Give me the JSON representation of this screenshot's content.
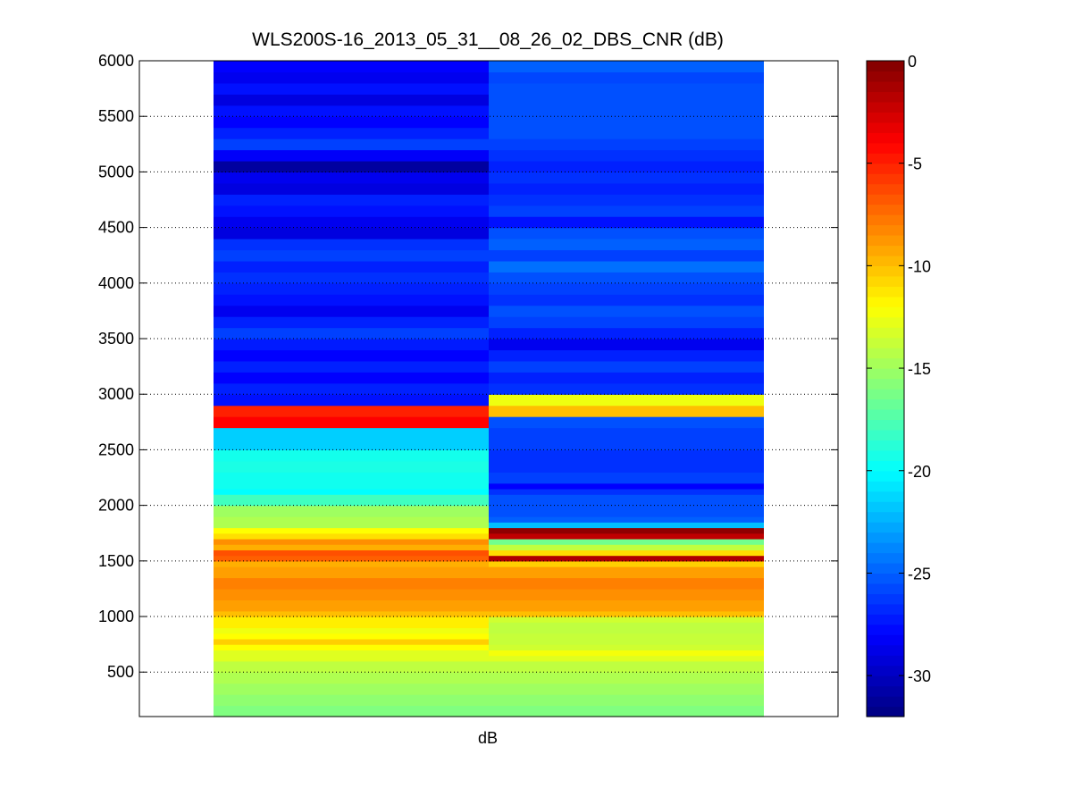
{
  "chart_data": {
    "type": "heatmap",
    "title": "WLS200S-16_2013_05_31__08_26_02_DBS_CNR (dB)",
    "xlabel": "dB",
    "ylabel": "",
    "ylim": [
      100,
      6000
    ],
    "yticks": [
      500,
      1000,
      1500,
      2000,
      2500,
      3000,
      3500,
      4000,
      4500,
      5000,
      5500,
      6000
    ],
    "grid": "y-dotted",
    "colormap": "jet",
    "colorbar": {
      "clim": [
        -32,
        0
      ],
      "ticks": [
        0,
        -5,
        -10,
        -15,
        -20,
        -25,
        -30
      ],
      "placement": "right"
    },
    "columns": [
      {
        "cells": [
          [
            100,
            200,
            -16
          ],
          [
            200,
            300,
            -15.5
          ],
          [
            300,
            400,
            -15
          ],
          [
            400,
            500,
            -14.5
          ],
          [
            500,
            600,
            -14
          ],
          [
            600,
            700,
            -13
          ],
          [
            700,
            750,
            -12
          ],
          [
            750,
            800,
            -10.5
          ],
          [
            800,
            850,
            -12
          ],
          [
            850,
            900,
            -12.5
          ],
          [
            900,
            1000,
            -11.5
          ],
          [
            1000,
            1050,
            -10
          ],
          [
            1050,
            1150,
            -9
          ],
          [
            1150,
            1250,
            -8.5
          ],
          [
            1250,
            1350,
            -8
          ],
          [
            1350,
            1450,
            -9
          ],
          [
            1450,
            1500,
            -9.5
          ],
          [
            1500,
            1550,
            -7
          ],
          [
            1550,
            1600,
            -6.5
          ],
          [
            1600,
            1650,
            -9.5
          ],
          [
            1650,
            1700,
            -8.5
          ],
          [
            1700,
            1750,
            -11
          ],
          [
            1750,
            1800,
            -12
          ],
          [
            1800,
            1900,
            -14.5
          ],
          [
            1900,
            2000,
            -15
          ],
          [
            2000,
            2100,
            -18
          ],
          [
            2100,
            2150,
            -20
          ],
          [
            2150,
            2200,
            -19.5
          ],
          [
            2200,
            2300,
            -19.5
          ],
          [
            2300,
            2400,
            -19.2
          ],
          [
            2400,
            2500,
            -19.4
          ],
          [
            2500,
            2700,
            -21.5
          ],
          [
            2700,
            2800,
            -4
          ],
          [
            2800,
            2900,
            -5
          ],
          [
            2900,
            3000,
            -27.5
          ],
          [
            3000,
            3100,
            -27
          ],
          [
            3100,
            3200,
            -28
          ],
          [
            3200,
            3300,
            -27
          ],
          [
            3300,
            3400,
            -28
          ],
          [
            3400,
            3500,
            -27.2
          ],
          [
            3500,
            3600,
            -26
          ],
          [
            3600,
            3700,
            -27
          ],
          [
            3700,
            3800,
            -28.5
          ],
          [
            3800,
            3900,
            -27.5
          ],
          [
            3900,
            4000,
            -27
          ],
          [
            4000,
            4100,
            -26.5
          ],
          [
            4100,
            4200,
            -27
          ],
          [
            4200,
            4300,
            -26
          ],
          [
            4300,
            4400,
            -26.5
          ],
          [
            4400,
            4500,
            -29
          ],
          [
            4500,
            4600,
            -28.5
          ],
          [
            4600,
            4700,
            -27.5
          ],
          [
            4700,
            4800,
            -27
          ],
          [
            4800,
            4900,
            -29
          ],
          [
            4900,
            5000,
            -28.5
          ],
          [
            5000,
            5100,
            -31
          ],
          [
            5100,
            5200,
            -28.2
          ],
          [
            5200,
            5300,
            -26
          ],
          [
            5300,
            5400,
            -27
          ],
          [
            5400,
            5500,
            -28
          ],
          [
            5500,
            5600,
            -27.5
          ],
          [
            5600,
            5700,
            -29
          ],
          [
            5700,
            5800,
            -27.5
          ],
          [
            5800,
            5900,
            -28.5
          ],
          [
            5900,
            6000,
            -28
          ]
        ]
      },
      {
        "cells": [
          [
            100,
            200,
            -16
          ],
          [
            200,
            300,
            -15.5
          ],
          [
            300,
            400,
            -15
          ],
          [
            400,
            500,
            -14.5
          ],
          [
            500,
            600,
            -14
          ],
          [
            600,
            650,
            -13
          ],
          [
            650,
            700,
            -12.3
          ],
          [
            700,
            750,
            -13.5
          ],
          [
            750,
            850,
            -13.8
          ],
          [
            850,
            950,
            -14
          ],
          [
            950,
            1000,
            -13.5
          ],
          [
            1000,
            1050,
            -10
          ],
          [
            1050,
            1150,
            -9
          ],
          [
            1150,
            1250,
            -8.5
          ],
          [
            1250,
            1350,
            -8
          ],
          [
            1350,
            1450,
            -9
          ],
          [
            1450,
            1500,
            -10.5
          ],
          [
            1500,
            1550,
            -1.5
          ],
          [
            1550,
            1600,
            -11
          ],
          [
            1600,
            1650,
            -14
          ],
          [
            1650,
            1700,
            -16.5
          ],
          [
            1700,
            1750,
            -2
          ],
          [
            1750,
            1800,
            -0.5
          ],
          [
            1800,
            1850,
            -22
          ],
          [
            1850,
            1900,
            -25
          ],
          [
            1900,
            2000,
            -25.5
          ],
          [
            2000,
            2100,
            -25.5
          ],
          [
            2100,
            2150,
            -26.5
          ],
          [
            2150,
            2200,
            -28
          ],
          [
            2200,
            2300,
            -26
          ],
          [
            2300,
            2400,
            -26.5
          ],
          [
            2400,
            2500,
            -26.5
          ],
          [
            2500,
            2600,
            -26
          ],
          [
            2600,
            2700,
            -26
          ],
          [
            2700,
            2800,
            -25.5
          ],
          [
            2800,
            2900,
            -10
          ],
          [
            2900,
            3000,
            -12.5
          ],
          [
            3000,
            3100,
            -26.5
          ],
          [
            3100,
            3200,
            -27
          ],
          [
            3200,
            3300,
            -26
          ],
          [
            3300,
            3400,
            -27
          ],
          [
            3400,
            3500,
            -28.5
          ],
          [
            3500,
            3600,
            -27
          ],
          [
            3600,
            3700,
            -26
          ],
          [
            3700,
            3800,
            -25.5
          ],
          [
            3800,
            3900,
            -26.5
          ],
          [
            3900,
            4000,
            -26
          ],
          [
            4000,
            4100,
            -25.5
          ],
          [
            4100,
            4200,
            -24.5
          ],
          [
            4200,
            4300,
            -26
          ],
          [
            4300,
            4400,
            -25
          ],
          [
            4400,
            4500,
            -25.5
          ],
          [
            4500,
            4600,
            -27.5
          ],
          [
            4600,
            4700,
            -26
          ],
          [
            4700,
            4800,
            -26.5
          ],
          [
            4800,
            4900,
            -27
          ],
          [
            4900,
            5000,
            -26.5
          ],
          [
            5000,
            5100,
            -27
          ],
          [
            5100,
            5200,
            -26.5
          ],
          [
            5200,
            5300,
            -26
          ],
          [
            5300,
            5400,
            -25.5
          ],
          [
            5400,
            5500,
            -25.5
          ],
          [
            5500,
            5600,
            -25.5
          ],
          [
            5600,
            5700,
            -25.5
          ],
          [
            5700,
            5800,
            -25.5
          ],
          [
            5800,
            5900,
            -25.8
          ],
          [
            5900,
            6000,
            -25
          ]
        ]
      }
    ]
  }
}
